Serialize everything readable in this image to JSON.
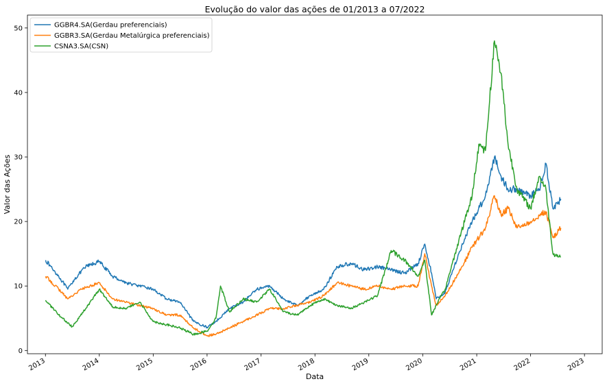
{
  "chart_data": {
    "type": "line",
    "title": "Evolução do valor das ações de 01/2013 a 07/2022",
    "xlabel": "Data",
    "ylabel": "Valor das Ações",
    "xlim": [
      "2012-09-01",
      "2023-05-01"
    ],
    "ylim": [
      -0.5,
      52
    ],
    "x_ticks": [
      "2013",
      "2014",
      "2015",
      "2016",
      "2017",
      "2018",
      "2019",
      "2020",
      "2021",
      "2022",
      "2023"
    ],
    "y_ticks": [
      0,
      10,
      20,
      30,
      40,
      50
    ],
    "grid": false,
    "legend_position": "top-left",
    "series": [
      {
        "name": "GGBR4.SA(Gerdau preferenciais)",
        "color": "#1f77b4",
        "x": [
          "2013-01-02",
          "2013-04-01",
          "2013-06-01",
          "2013-07-15",
          "2013-10-01",
          "2014-01-01",
          "2014-04-01",
          "2014-07-01",
          "2014-10-01",
          "2015-01-01",
          "2015-04-01",
          "2015-07-01",
          "2015-10-01",
          "2016-01-01",
          "2016-03-01",
          "2016-06-01",
          "2016-09-01",
          "2016-12-01",
          "2017-03-01",
          "2017-06-01",
          "2017-09-01",
          "2017-12-01",
          "2018-03-01",
          "2018-06-01",
          "2018-09-01",
          "2018-12-01",
          "2019-03-01",
          "2019-06-01",
          "2019-09-01",
          "2019-12-01",
          "2020-01-15",
          "2020-03-01",
          "2020-04-01",
          "2020-06-01",
          "2020-09-01",
          "2020-12-01",
          "2021-03-01",
          "2021-05-01",
          "2021-06-15",
          "2021-08-01",
          "2021-10-01",
          "2022-01-01",
          "2022-03-01",
          "2022-04-15",
          "2022-06-01",
          "2022-07-25"
        ],
        "values": [
          14.0,
          11.5,
          9.5,
          11.0,
          13.0,
          13.8,
          11.5,
          10.5,
          10.0,
          9.5,
          8.0,
          7.5,
          4.5,
          3.6,
          4.5,
          6.5,
          7.5,
          9.5,
          10.0,
          8.0,
          7.0,
          8.5,
          9.5,
          13.0,
          13.5,
          12.5,
          13.0,
          12.5,
          12.0,
          13.5,
          16.5,
          12.0,
          8.0,
          9.0,
          15.0,
          20.0,
          24.0,
          30.0,
          27.0,
          25.0,
          25.0,
          24.0,
          25.0,
          29.0,
          22.0,
          23.5
        ]
      },
      {
        "name": "GGBR3.SA(Gerdau Metalúrgica preferenciais)",
        "color": "#ff7f0e",
        "x": [
          "2013-01-02",
          "2013-04-01",
          "2013-06-01",
          "2013-09-01",
          "2014-01-01",
          "2014-04-01",
          "2014-07-01",
          "2014-10-01",
          "2015-01-01",
          "2015-04-01",
          "2015-07-01",
          "2015-10-01",
          "2016-01-01",
          "2016-03-01",
          "2016-06-01",
          "2016-09-01",
          "2016-12-01",
          "2017-03-01",
          "2017-06-01",
          "2017-09-01",
          "2017-12-01",
          "2018-03-01",
          "2018-06-01",
          "2018-09-01",
          "2018-12-01",
          "2019-03-01",
          "2019-06-01",
          "2019-09-01",
          "2019-12-01",
          "2020-01-15",
          "2020-03-01",
          "2020-04-01",
          "2020-06-01",
          "2020-09-01",
          "2020-12-01",
          "2021-03-01",
          "2021-05-01",
          "2021-06-15",
          "2021-08-01",
          "2021-10-01",
          "2022-01-01",
          "2022-03-01",
          "2022-04-15",
          "2022-06-01",
          "2022-07-25"
        ],
        "values": [
          11.5,
          9.5,
          8.0,
          9.5,
          10.5,
          8.0,
          7.5,
          7.0,
          6.5,
          5.5,
          5.5,
          3.5,
          2.3,
          2.5,
          3.5,
          4.5,
          5.5,
          6.5,
          6.5,
          7.0,
          7.5,
          8.5,
          10.5,
          10.0,
          9.5,
          10.0,
          9.5,
          10.0,
          10.0,
          15.0,
          10.0,
          7.0,
          8.5,
          12.0,
          16.0,
          19.0,
          24.0,
          21.0,
          22.0,
          19.0,
          20.0,
          21.0,
          21.5,
          17.5,
          19.0
        ]
      },
      {
        "name": "CSNA3.SA(CSN)",
        "color": "#2ca02c",
        "x": [
          "2013-01-02",
          "2013-04-01",
          "2013-07-01",
          "2013-10-01",
          "2014-01-01",
          "2014-04-01",
          "2014-07-01",
          "2014-10-01",
          "2015-01-01",
          "2015-04-01",
          "2015-07-01",
          "2015-10-01",
          "2016-01-01",
          "2016-03-01",
          "2016-04-01",
          "2016-06-01",
          "2016-09-01",
          "2016-12-01",
          "2017-03-01",
          "2017-06-01",
          "2017-09-01",
          "2017-12-01",
          "2018-03-01",
          "2018-06-01",
          "2018-09-01",
          "2018-12-01",
          "2019-03-01",
          "2019-06-01",
          "2019-09-01",
          "2019-12-01",
          "2020-01-15",
          "2020-03-01",
          "2020-04-01",
          "2020-06-01",
          "2020-09-01",
          "2020-12-01",
          "2021-01-15",
          "2021-03-01",
          "2021-05-01",
          "2021-06-15",
          "2021-08-01",
          "2021-10-01",
          "2022-01-01",
          "2022-03-01",
          "2022-04-15",
          "2022-06-01",
          "2022-07-25"
        ],
        "values": [
          7.8,
          5.5,
          3.7,
          6.5,
          9.5,
          6.8,
          6.5,
          7.5,
          4.5,
          4.0,
          3.5,
          2.5,
          3.0,
          5.0,
          10.0,
          6.0,
          8.0,
          7.5,
          9.5,
          6.0,
          5.5,
          7.0,
          8.0,
          7.0,
          6.5,
          7.5,
          8.5,
          15.5,
          14.0,
          11.5,
          14.0,
          5.5,
          7.0,
          9.5,
          17.0,
          24.0,
          32.0,
          31.0,
          48.0,
          43.0,
          32.0,
          25.0,
          22.0,
          27.0,
          25.0,
          15.0,
          14.5
        ]
      }
    ]
  }
}
